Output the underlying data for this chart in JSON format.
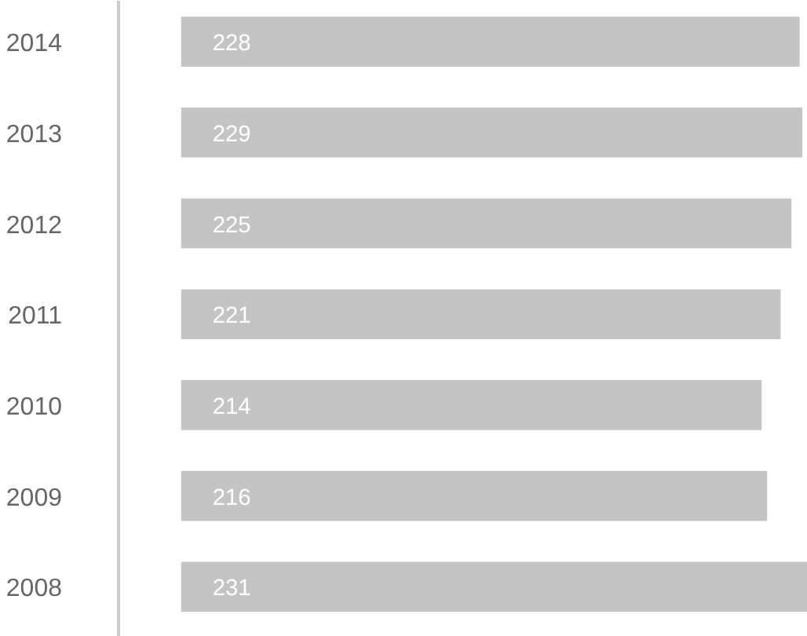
{
  "chart_data": {
    "type": "bar",
    "orientation": "horizontal",
    "categories": [
      "2014",
      "2013",
      "2012",
      "2011",
      "2010",
      "2009",
      "2008"
    ],
    "values": [
      228,
      229,
      225,
      221,
      214,
      216,
      231
    ],
    "color": "#c4c4c4",
    "data_labels": true
  }
}
